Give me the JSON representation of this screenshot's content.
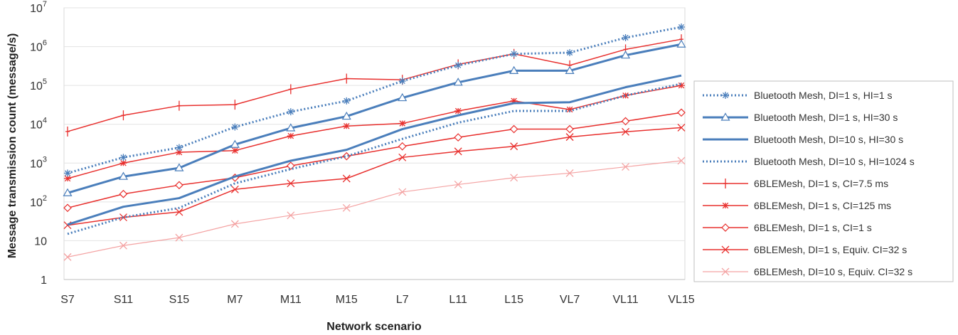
{
  "chart_data": {
    "type": "line",
    "title": "",
    "xlabel": "Network scenario",
    "ylabel": "Message transmission count (message/s)",
    "yscale": "log",
    "ylim": [
      1,
      10000000
    ],
    "y_ticks": [
      {
        "value": 1,
        "label": "1"
      },
      {
        "value": 10,
        "label": "10"
      },
      {
        "value": 100,
        "base": "10",
        "exp": "2"
      },
      {
        "value": 1000,
        "base": "10",
        "exp": "3"
      },
      {
        "value": 10000,
        "base": "10",
        "exp": "4"
      },
      {
        "value": 100000,
        "base": "10",
        "exp": "5"
      },
      {
        "value": 1000000,
        "base": "10",
        "exp": "6"
      },
      {
        "value": 10000000,
        "base": "10",
        "exp": "7"
      }
    ],
    "grid": "horizontal",
    "legend_position": "right",
    "categories": [
      "S7",
      "S11",
      "S15",
      "M7",
      "M11",
      "M15",
      "L7",
      "L11",
      "L15",
      "VL7",
      "VL11",
      "VL15"
    ],
    "series": [
      {
        "name": "Bluetooth Mesh, DI=1 s, HI=1 s",
        "color": "#4a7ebb",
        "dash": "dotted",
        "width": 3,
        "marker": "asterisk",
        "values": [
          550,
          1400,
          2500,
          8500,
          21000,
          40000,
          130000,
          330000,
          650000,
          700000,
          1700000,
          3200000
        ]
      },
      {
        "name": "Bluetooth Mesh, DI=1 s, HI=30 s",
        "color": "#4a7ebb",
        "dash": "solid",
        "width": 3,
        "marker": "triangle",
        "values": [
          170,
          450,
          750,
          3000,
          8000,
          16000,
          48000,
          120000,
          240000,
          240000,
          600000,
          1150000
        ]
      },
      {
        "name": "Bluetooth Mesh, DI=10 s, HI=30 s",
        "color": "#4a7ebb",
        "dash": "solid",
        "width": 3,
        "marker": "none",
        "values": [
          26,
          75,
          125,
          450,
          1150,
          2200,
          7500,
          17000,
          35000,
          37000,
          90000,
          180000
        ]
      },
      {
        "name": "Bluetooth Mesh, DI=10 s, HI=1024 s",
        "color": "#4a7ebb",
        "dash": "dotted",
        "width": 3,
        "marker": "none",
        "values": [
          15,
          40,
          70,
          300,
          700,
          1500,
          4200,
          11000,
          22000,
          22000,
          55000,
          110000
        ]
      },
      {
        "name": "6BLEMesh, DI=1 s, CI=7.5 ms",
        "color": "#e8302e",
        "dash": "solid",
        "width": 1.5,
        "marker": "plus",
        "values": [
          6500,
          17000,
          30000,
          32000,
          80000,
          150000,
          140000,
          350000,
          650000,
          330000,
          850000,
          1550000
        ]
      },
      {
        "name": "6BLEMesh, DI=1 s, CI=125 ms",
        "color": "#e8302e",
        "dash": "solid",
        "width": 1.5,
        "marker": "star",
        "values": [
          400,
          1000,
          1900,
          2100,
          5000,
          9000,
          10500,
          22000,
          40000,
          24000,
          55000,
          100000
        ]
      },
      {
        "name": "6BLEMesh, DI=1 s, CI=1 s",
        "color": "#e8302e",
        "dash": "solid",
        "width": 1.5,
        "marker": "diamond",
        "values": [
          70,
          160,
          270,
          420,
          850,
          1500,
          2700,
          4600,
          7500,
          7500,
          12000,
          20000
        ]
      },
      {
        "name": "6BLEMesh, DI=1 s, Equiv. CI=32 s",
        "color": "#e8302e",
        "dash": "solid",
        "width": 1.5,
        "marker": "x",
        "values": [
          25,
          40,
          55,
          210,
          300,
          400,
          1400,
          2000,
          2700,
          4700,
          6400,
          8200
        ]
      },
      {
        "name": "6BLEMesh, DI=10 s, Equiv. CI=32 s",
        "color": "#f4a3a3",
        "dash": "solid",
        "width": 1.2,
        "marker": "x",
        "values": [
          3.8,
          7.5,
          12,
          27,
          45,
          70,
          180,
          280,
          420,
          550,
          800,
          1150
        ]
      }
    ]
  }
}
